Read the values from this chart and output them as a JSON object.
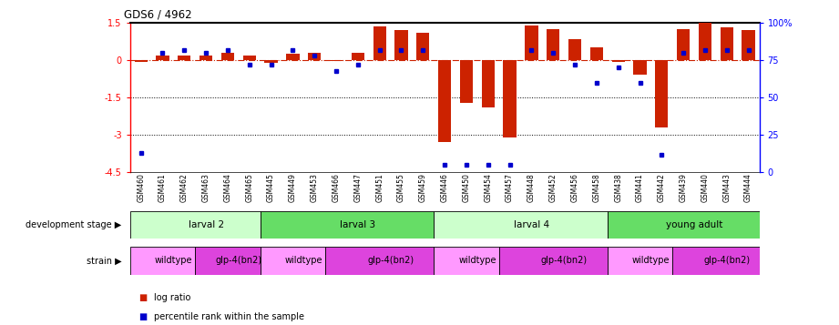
{
  "title": "GDS6 / 4962",
  "samples": [
    "GSM460",
    "GSM461",
    "GSM462",
    "GSM463",
    "GSM464",
    "GSM465",
    "GSM445",
    "GSM449",
    "GSM453",
    "GSM466",
    "GSM447",
    "GSM451",
    "GSM455",
    "GSM459",
    "GSM446",
    "GSM450",
    "GSM454",
    "GSM457",
    "GSM448",
    "GSM452",
    "GSM456",
    "GSM458",
    "GSM438",
    "GSM441",
    "GSM442",
    "GSM439",
    "GSM440",
    "GSM443",
    "GSM444"
  ],
  "log_ratio": [
    -0.08,
    0.18,
    0.2,
    0.17,
    0.3,
    0.2,
    -0.1,
    0.27,
    0.28,
    -0.05,
    0.28,
    1.35,
    1.2,
    1.1,
    -3.3,
    -1.7,
    -1.9,
    -3.1,
    1.4,
    1.25,
    0.85,
    0.5,
    -0.08,
    -0.6,
    -2.7,
    1.25,
    1.5,
    1.3,
    1.2
  ],
  "percentile": [
    13,
    80,
    82,
    80,
    82,
    72,
    72,
    82,
    78,
    68,
    72,
    82,
    82,
    82,
    5,
    5,
    5,
    5,
    82,
    80,
    72,
    60,
    70,
    60,
    12,
    80,
    82,
    82,
    82
  ],
  "development_stages": [
    {
      "label": "larval 2",
      "start": 0,
      "end": 6,
      "color": "#ccffcc"
    },
    {
      "label": "larval 3",
      "start": 6,
      "end": 14,
      "color": "#66dd66"
    },
    {
      "label": "larval 4",
      "start": 14,
      "end": 22,
      "color": "#ccffcc"
    },
    {
      "label": "young adult",
      "start": 22,
      "end": 29,
      "color": "#66dd66"
    }
  ],
  "strains": [
    {
      "label": "wildtype",
      "start": 0,
      "end": 3,
      "color": "#ff99ff"
    },
    {
      "label": "glp-4(bn2)",
      "start": 3,
      "end": 6,
      "color": "#dd44dd"
    },
    {
      "label": "wildtype",
      "start": 6,
      "end": 9,
      "color": "#ff99ff"
    },
    {
      "label": "glp-4(bn2)",
      "start": 9,
      "end": 14,
      "color": "#dd44dd"
    },
    {
      "label": "wildtype",
      "start": 14,
      "end": 17,
      "color": "#ff99ff"
    },
    {
      "label": "glp-4(bn2)",
      "start": 17,
      "end": 22,
      "color": "#dd44dd"
    },
    {
      "label": "wildtype",
      "start": 22,
      "end": 25,
      "color": "#ff99ff"
    },
    {
      "label": "glp-4(bn2)",
      "start": 25,
      "end": 29,
      "color": "#dd44dd"
    }
  ],
  "bar_color": "#cc2200",
  "dot_color": "#0000cc",
  "ylim_left": [
    -4.5,
    1.5
  ],
  "ylim_right": [
    0,
    100
  ],
  "yticks_left": [
    1.5,
    0,
    -1.5,
    -3.0,
    -4.5
  ],
  "yticks_right": [
    100,
    75,
    50,
    25,
    0
  ],
  "dotted_lines": [
    -1.5,
    -3.0
  ],
  "bar_width": 0.6,
  "dot_size": 18
}
